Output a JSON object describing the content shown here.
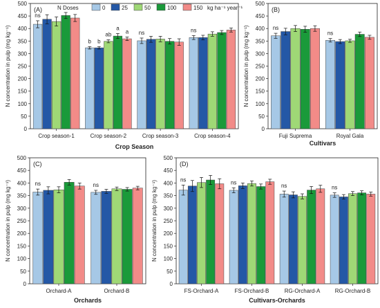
{
  "colors": {
    "0": "#a6c8e6",
    "25": "#2458a6",
    "50": "#9fd876",
    "100": "#1a9a3a",
    "150": "#f28b88"
  },
  "legend": {
    "title": "N Doses",
    "items": [
      "0",
      "25",
      "50",
      "100",
      "150"
    ],
    "unit": "kg ha⁻¹ year⁻¹"
  },
  "chart_data": [
    {
      "panel": "(A)",
      "type": "bar",
      "ylabel": "N concentration in pulp (mg kg⁻¹)",
      "xlabel": "Crop Season",
      "ylim": [
        0,
        500
      ],
      "yticks": [
        0,
        50,
        100,
        150,
        200,
        250,
        300,
        350,
        400,
        450,
        500
      ],
      "categories": [
        "Crop season-1",
        "Crop season-2",
        "Crop season-3",
        "Crop season-4"
      ],
      "series": [
        {
          "name": "0",
          "values": [
            417,
            323,
            351,
            364
          ],
          "err": [
            14,
            5,
            11,
            8
          ]
        },
        {
          "name": "25",
          "values": [
            437,
            323,
            357,
            364
          ],
          "err": [
            18,
            5,
            12,
            9
          ]
        },
        {
          "name": "50",
          "values": [
            428,
            349,
            358,
            378
          ],
          "err": [
            18,
            6,
            11,
            9
          ]
        },
        {
          "name": "100",
          "values": [
            452,
            370,
            349,
            384
          ],
          "err": [
            12,
            10,
            11,
            8
          ]
        },
        {
          "name": "150",
          "values": [
            442,
            359,
            346,
            394
          ],
          "err": [
            14,
            7,
            13,
            8
          ]
        }
      ],
      "annotations": [
        [
          "ns"
        ],
        [
          "b",
          "b",
          "ab",
          "a",
          "a"
        ],
        [
          "ns"
        ],
        [
          "ns"
        ]
      ]
    },
    {
      "panel": "(B)",
      "type": "bar",
      "ylabel": "N concentration in pulp (mg kg⁻¹)",
      "xlabel": "Cultivars",
      "ylim": [
        0,
        500
      ],
      "yticks": [
        0,
        50,
        100,
        150,
        200,
        250,
        300,
        350,
        400,
        450,
        500
      ],
      "categories": [
        "Fuji Suprema",
        "Royal Gala"
      ],
      "series": [
        {
          "name": "0",
          "values": [
            371,
            353
          ],
          "err": [
            10,
            7
          ]
        },
        {
          "name": "25",
          "values": [
            388,
            348
          ],
          "err": [
            13,
            8
          ]
        },
        {
          "name": "50",
          "values": [
            400,
            351
          ],
          "err": [
            12,
            6
          ]
        },
        {
          "name": "100",
          "values": [
            397,
            377
          ],
          "err": [
            12,
            9
          ]
        },
        {
          "name": "150",
          "values": [
            400,
            365
          ],
          "err": [
            11,
            8
          ]
        }
      ],
      "annotations": [
        [
          "ns"
        ],
        [
          "ns"
        ]
      ]
    },
    {
      "panel": "(C)",
      "type": "bar",
      "ylabel": "N concentration in pulp (mg kg⁻¹)",
      "xlabel": "Orchards",
      "ylim": [
        0,
        500
      ],
      "yticks": [
        0,
        50,
        100,
        150,
        200,
        250,
        300,
        350,
        400,
        450,
        500
      ],
      "categories": [
        "Orchard-A",
        "Orchard-B"
      ],
      "series": [
        {
          "name": "0",
          "values": [
            364,
            363
          ],
          "err": [
            12,
            8
          ]
        },
        {
          "name": "25",
          "values": [
            371,
            367
          ],
          "err": [
            14,
            8
          ]
        },
        {
          "name": "50",
          "values": [
            373,
            377
          ],
          "err": [
            12,
            7
          ]
        },
        {
          "name": "100",
          "values": [
            403,
            375
          ],
          "err": [
            11,
            7
          ]
        },
        {
          "name": "150",
          "values": [
            388,
            380
          ],
          "err": [
            12,
            7
          ]
        }
      ],
      "annotations": [
        [
          "ns"
        ],
        [
          "ns"
        ]
      ]
    },
    {
      "panel": "(D)",
      "type": "bar",
      "ylabel": "N concentration in pulp (mg kg⁻¹)",
      "xlabel": "Cultivars-Orchards",
      "ylim": [
        0,
        500
      ],
      "yticks": [
        0,
        50,
        100,
        150,
        200,
        250,
        300,
        350,
        400,
        450,
        500
      ],
      "categories": [
        "FS-Orchard-A",
        "FS-Orchard-B",
        "RG-Orchard-A",
        "RG-Orchard-B"
      ],
      "series": [
        {
          "name": "0",
          "values": [
            372,
            371,
            356,
            352
          ],
          "err": [
            20,
            10,
            12,
            9
          ]
        },
        {
          "name": "25",
          "values": [
            388,
            389,
            353,
            345
          ],
          "err": [
            22,
            11,
            12,
            9
          ]
        },
        {
          "name": "50",
          "values": [
            402,
            398,
            347,
            358
          ],
          "err": [
            20,
            10,
            10,
            8
          ]
        },
        {
          "name": "100",
          "values": [
            412,
            386,
            372,
            361
          ],
          "err": [
            18,
            10,
            14,
            8
          ]
        },
        {
          "name": "150",
          "values": [
            397,
            405,
            377,
            356
          ],
          "err": [
            20,
            10,
            14,
            8
          ]
        }
      ],
      "annotations": [
        [
          "ns"
        ],
        [
          "ns"
        ],
        [
          "ns"
        ],
        [
          "ns"
        ]
      ]
    }
  ]
}
